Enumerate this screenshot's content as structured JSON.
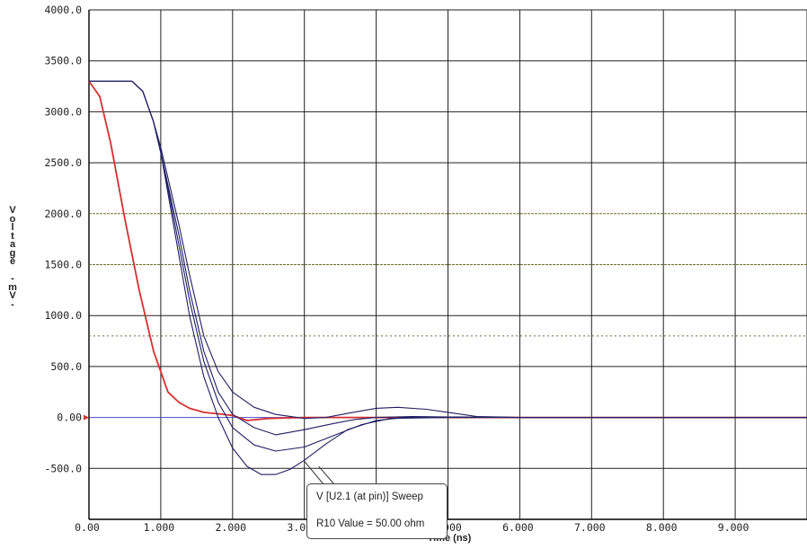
{
  "chart_data": {
    "type": "line",
    "xlabel": "Time (ns)",
    "ylabel": "Voltage -mV-",
    "xlim": [
      0,
      10
    ],
    "ylim": [
      -1000,
      4000
    ],
    "x_ticks": [
      "0.00",
      "1.000",
      "2.000",
      "3.000",
      "4.000",
      "5.000",
      "6.000",
      "7.000",
      "8.000",
      "9.000"
    ],
    "y_ticks": [
      "4000.0",
      "3500.0",
      "3000.0",
      "2500.0",
      "2000.0",
      "1500.0",
      "1000.0",
      "500.0",
      "0.00",
      "-500.0"
    ],
    "reference_levels_mV": [
      2000,
      1500,
      800
    ],
    "grid": true,
    "series": [
      {
        "color": "#d63030",
        "x": [
          0,
          0.15,
          0.3,
          0.5,
          0.7,
          0.9,
          1.0,
          1.1,
          1.25,
          1.4,
          1.6,
          2.0,
          2.2,
          2.5,
          3.0,
          4.0,
          5.0,
          7.0,
          10.0
        ],
        "y": [
          3300,
          3150,
          2700,
          1950,
          1250,
          650,
          450,
          250,
          150,
          90,
          50,
          20,
          -30,
          -10,
          0,
          0,
          0,
          0,
          0
        ]
      },
      {
        "color": "#1e1e64",
        "x": [
          0,
          0.6,
          0.75,
          0.9,
          1.0,
          1.1,
          1.25,
          1.4,
          1.6,
          1.8,
          2.0,
          2.3,
          2.6,
          3.0,
          3.3,
          3.6,
          4.0,
          4.3,
          4.7,
          5.0,
          5.4,
          6.0,
          10.0
        ],
        "y": [
          3300,
          3300,
          3200,
          2900,
          2650,
          2350,
          1900,
          1400,
          800,
          450,
          250,
          100,
          30,
          -10,
          0,
          40,
          90,
          100,
          80,
          50,
          10,
          0,
          0
        ]
      },
      {
        "color": "#1e1e64",
        "x": [
          0,
          0.6,
          0.75,
          0.9,
          1.0,
          1.1,
          1.25,
          1.4,
          1.6,
          1.8,
          2.0,
          2.3,
          2.6,
          3.0,
          3.4,
          3.7,
          4.0,
          4.5,
          5.0,
          6.0,
          10.0
        ],
        "y": [
          3300,
          3300,
          3200,
          2900,
          2600,
          2280,
          1800,
          1250,
          650,
          250,
          30,
          -100,
          -170,
          -120,
          -60,
          -20,
          0,
          10,
          5,
          0,
          0
        ]
      },
      {
        "color": "#1e1e64",
        "x": [
          0,
          0.6,
          0.75,
          0.9,
          1.0,
          1.1,
          1.25,
          1.4,
          1.6,
          1.8,
          2.0,
          2.3,
          2.6,
          3.0,
          3.4,
          3.8,
          4.2,
          5.0,
          6.0,
          10.0
        ],
        "y": [
          3300,
          3300,
          3200,
          2900,
          2600,
          2250,
          1700,
          1150,
          550,
          150,
          -100,
          -270,
          -330,
          -290,
          -180,
          -70,
          -10,
          0,
          0,
          0
        ]
      },
      {
        "color": "#1e1e64",
        "x": [
          0,
          0.6,
          0.75,
          0.9,
          1.0,
          1.1,
          1.25,
          1.4,
          1.6,
          1.8,
          2.0,
          2.2,
          2.4,
          2.6,
          2.8,
          3.0,
          3.3,
          3.6,
          4.0,
          4.4,
          5.0,
          6.0,
          10.0
        ],
        "y": [
          3300,
          3300,
          3200,
          2900,
          2600,
          2200,
          1600,
          1000,
          400,
          0,
          -300,
          -480,
          -560,
          -560,
          -510,
          -420,
          -260,
          -120,
          -30,
          0,
          0,
          0,
          0
        ]
      }
    ],
    "tooltip": {
      "line1": "V [U2.1 (at pin)] Sweep",
      "line2": "R10 Value = 50.00 ohm"
    },
    "grid_color": "#202020",
    "reference_color": "#6e6e2a"
  }
}
